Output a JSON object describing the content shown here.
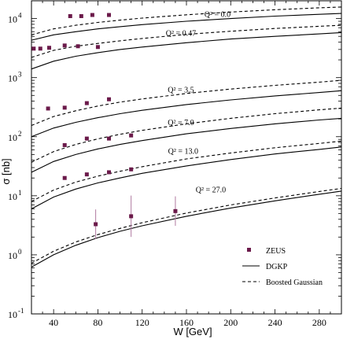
{
  "chart_data": {
    "type": "scatter",
    "xlabel": "W [GeV]",
    "ylabel": "σ [nb]",
    "xlim": [
      20,
      300
    ],
    "ylim": [
      0.1,
      20000
    ],
    "yscale": "log",
    "x_ticks": [
      {
        "value": 40,
        "label": "40"
      },
      {
        "value": 80,
        "label": "80"
      },
      {
        "value": 120,
        "label": "120"
      },
      {
        "value": 160,
        "label": "160"
      },
      {
        "value": 200,
        "label": "200"
      },
      {
        "value": 240,
        "label": "240"
      },
      {
        "value": 280,
        "label": "280"
      }
    ],
    "y_ticks": [
      {
        "value": 0.1,
        "mant": "10",
        "exp": "-1"
      },
      {
        "value": 1,
        "mant": "10",
        "exp": "0"
      },
      {
        "value": 10,
        "mant": "10",
        "exp": "1"
      },
      {
        "value": 100,
        "mant": "10",
        "exp": "2"
      },
      {
        "value": 1000,
        "mant": "10",
        "exp": "3"
      },
      {
        "value": 10000,
        "mant": "10",
        "exp": "4"
      }
    ],
    "curve_labels": [
      {
        "text": "Q² = 0.0",
        "x": 188,
        "y": 10600
      },
      {
        "text": "Q² = 0.47",
        "x": 155,
        "y": 5100
      },
      {
        "text": "Q² = 3.5",
        "x": 155,
        "y": 560
      },
      {
        "text": "Q² = 7.0",
        "x": 155,
        "y": 158
      },
      {
        "text": "Q² = 13.0",
        "x": 157,
        "y": 51
      },
      {
        "text": "Q² = 27.0",
        "x": 182,
        "y": 11.5
      }
    ],
    "series": [
      {
        "name": "ZEUS",
        "style": "markers",
        "color": "#6b1a4a",
        "points": [
          {
            "x": 55,
            "y": 11000,
            "err": 0
          },
          {
            "x": 65,
            "y": 11000,
            "err": 0
          },
          {
            "x": 75,
            "y": 11500,
            "err": 0
          },
          {
            "x": 90,
            "y": 11500,
            "err": 0
          },
          {
            "x": 22,
            "y": 3100,
            "err": 0
          },
          {
            "x": 28,
            "y": 3100,
            "err": 0
          },
          {
            "x": 36,
            "y": 3200,
            "err": 0
          },
          {
            "x": 50,
            "y": 3500,
            "err": 0
          },
          {
            "x": 62,
            "y": 3400,
            "err": 0
          },
          {
            "x": 80,
            "y": 3300,
            "err": 0
          },
          {
            "x": 35,
            "y": 300,
            "err": 0
          },
          {
            "x": 50,
            "y": 310,
            "err": 0
          },
          {
            "x": 70,
            "y": 370,
            "err": 0
          },
          {
            "x": 90,
            "y": 430,
            "err": 0
          },
          {
            "x": 50,
            "y": 72,
            "err": 0
          },
          {
            "x": 70,
            "y": 93,
            "err": 0
          },
          {
            "x": 90,
            "y": 93,
            "err": 0
          },
          {
            "x": 110,
            "y": 105,
            "err": 0
          },
          {
            "x": 50,
            "y": 20,
            "err": 0
          },
          {
            "x": 70,
            "y": 23,
            "err": 0
          },
          {
            "x": 90,
            "y": 25,
            "err": 0
          },
          {
            "x": 110,
            "y": 28,
            "err": 0
          },
          {
            "x": 78,
            "y": 3.3,
            "err": 0.25
          },
          {
            "x": 110,
            "y": 4.5,
            "err": 0.35
          },
          {
            "x": 150,
            "y": 5.5,
            "err": 0.25
          }
        ]
      },
      {
        "name": "DGKP",
        "style": "solid",
        "curves": [
          {
            "Q2": "0.0",
            "x": [
              20,
              40,
              60,
              80,
              100,
              120,
              160,
              200,
              240,
              280,
              300
            ],
            "y": [
              4300,
              5300,
              6000,
              6700,
              7300,
              7900,
              9000,
              10000,
              11000,
              11800,
              12200
            ]
          },
          {
            "Q2": "0.47",
            "x": [
              20,
              40,
              60,
              80,
              100,
              120,
              160,
              200,
              240,
              280,
              300
            ],
            "y": [
              1400,
              1900,
              2300,
              2650,
              3000,
              3300,
              3900,
              4500,
              5000,
              5500,
              5800
            ]
          },
          {
            "Q2": "3.5",
            "x": [
              20,
              40,
              60,
              80,
              100,
              120,
              160,
              200,
              240,
              280,
              300
            ],
            "y": [
              100,
              140,
              175,
              210,
              245,
              280,
              350,
              420,
              490,
              560,
              600
            ]
          },
          {
            "Q2": "7.0",
            "x": [
              20,
              40,
              60,
              80,
              100,
              120,
              160,
              200,
              240,
              280,
              300
            ],
            "y": [
              25,
              38,
              50,
              62,
              74,
              86,
              112,
              138,
              165,
              192,
              205
            ]
          },
          {
            "Q2": "13.0",
            "x": [
              20,
              40,
              60,
              80,
              100,
              120,
              160,
              200,
              240,
              280,
              300
            ],
            "y": [
              6,
              9.5,
              13,
              16.5,
              20,
              24,
              32,
              41,
              51,
              61,
              67
            ]
          },
          {
            "Q2": "27.0",
            "x": [
              20,
              40,
              60,
              80,
              100,
              120,
              160,
              200,
              240,
              280,
              300
            ],
            "y": [
              0.62,
              1.0,
              1.45,
              1.95,
              2.5,
              3.1,
              4.5,
              6.2,
              8.2,
              10.6,
              12
            ]
          }
        ]
      },
      {
        "name": "Boosted Gaussian",
        "style": "dashed",
        "curves": [
          {
            "Q2": "0.0",
            "x": [
              20,
              40,
              60,
              80,
              100,
              120,
              160,
              200,
              240,
              280,
              300
            ],
            "y": [
              5300,
              6700,
              7700,
              8600,
              9400,
              10200,
              11600,
              12900,
              14100,
              15200,
              15700
            ]
          },
          {
            "Q2": "0.47",
            "x": [
              20,
              40,
              60,
              80,
              100,
              120,
              160,
              200,
              240,
              280,
              300
            ],
            "y": [
              2200,
              2900,
              3400,
              3800,
              4200,
              4600,
              5400,
              6100,
              6800,
              7400,
              7700
            ]
          },
          {
            "Q2": "3.5",
            "x": [
              20,
              40,
              60,
              80,
              100,
              120,
              160,
              200,
              240,
              280,
              300
            ],
            "y": [
              155,
              220,
              275,
              330,
              385,
              435,
              540,
              640,
              740,
              840,
              900
            ]
          },
          {
            "Q2": "7.0",
            "x": [
              20,
              40,
              60,
              80,
              100,
              120,
              160,
              200,
              240,
              280,
              300
            ],
            "y": [
              37,
              56,
              74,
              92,
              110,
              128,
              165,
              205,
              245,
              285,
              305
            ]
          },
          {
            "Q2": "13.0",
            "x": [
              20,
              40,
              60,
              80,
              100,
              120,
              160,
              200,
              240,
              280,
              300
            ],
            "y": [
              8,
              12.5,
              17,
              21.5,
              26,
              31,
              42,
              53,
              65,
              77,
              84
            ]
          },
          {
            "Q2": "27.0",
            "x": [
              20,
              40,
              60,
              80,
              100,
              120,
              160,
              200,
              240,
              280,
              300
            ],
            "y": [
              0.72,
              1.15,
              1.65,
              2.2,
              2.8,
              3.5,
              5.1,
              7.0,
              9.2,
              11.8,
              13.3
            ]
          }
        ]
      }
    ],
    "legend": {
      "position": "bottom-right",
      "entries": [
        {
          "label": "ZEUS",
          "kind": "marker"
        },
        {
          "label": "DGKP",
          "kind": "solid"
        },
        {
          "label": "Boosted Gaussian",
          "kind": "dashed"
        }
      ]
    }
  }
}
